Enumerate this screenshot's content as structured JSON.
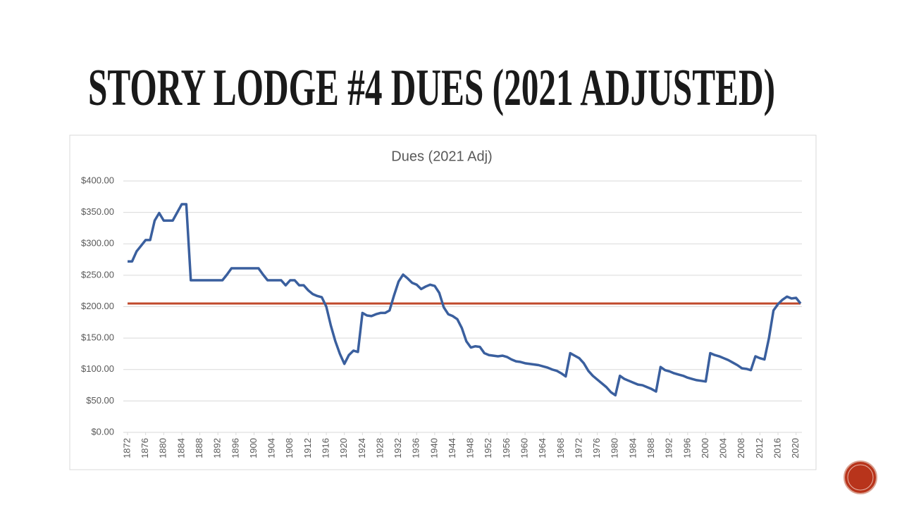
{
  "slide_title": "STORY LODGE #4 DUES (2021 ADJUSTED)",
  "chart_data": {
    "type": "line",
    "title": "Dues (2021 Adj)",
    "x": [
      1872,
      1873,
      1874,
      1875,
      1876,
      1877,
      1878,
      1879,
      1880,
      1881,
      1882,
      1883,
      1884,
      1885,
      1886,
      1887,
      1888,
      1889,
      1890,
      1891,
      1892,
      1893,
      1894,
      1895,
      1896,
      1897,
      1898,
      1899,
      1900,
      1901,
      1902,
      1903,
      1904,
      1905,
      1906,
      1907,
      1908,
      1909,
      1910,
      1911,
      1912,
      1913,
      1914,
      1915,
      1916,
      1917,
      1918,
      1919,
      1920,
      1921,
      1922,
      1923,
      1924,
      1925,
      1926,
      1927,
      1928,
      1929,
      1930,
      1931,
      1932,
      1933,
      1934,
      1935,
      1936,
      1937,
      1938,
      1939,
      1940,
      1941,
      1942,
      1943,
      1944,
      1945,
      1946,
      1947,
      1948,
      1949,
      1950,
      1951,
      1952,
      1953,
      1954,
      1955,
      1956,
      1957,
      1958,
      1959,
      1960,
      1961,
      1962,
      1963,
      1964,
      1965,
      1966,
      1967,
      1968,
      1969,
      1970,
      1971,
      1972,
      1973,
      1974,
      1975,
      1976,
      1977,
      1978,
      1979,
      1980,
      1981,
      1982,
      1983,
      1984,
      1985,
      1986,
      1987,
      1988,
      1989,
      1990,
      1991,
      1992,
      1993,
      1994,
      1995,
      1996,
      1997,
      1998,
      1999,
      2000,
      2001,
      2002,
      2003,
      2004,
      2005,
      2006,
      2007,
      2008,
      2009,
      2010,
      2011,
      2012,
      2013,
      2014,
      2015,
      2016,
      2017,
      2018,
      2019,
      2020,
      2021
    ],
    "series": [
      {
        "color": "#3a5f9e",
        "values": [
          272,
          272,
          288,
          297,
          306,
          306,
          337,
          349,
          337,
          337,
          337,
          350,
          363,
          363,
          242,
          242,
          242,
          242,
          242,
          242,
          242,
          242,
          251,
          261,
          261,
          261,
          261,
          261,
          261,
          261,
          251,
          242,
          242,
          242,
          242,
          234,
          242,
          242,
          234,
          234,
          226,
          220,
          217,
          215,
          200,
          170,
          145,
          125,
          109,
          123,
          130,
          128,
          190,
          186,
          185,
          188,
          190,
          190,
          194,
          218,
          240,
          251,
          245,
          238,
          235,
          228,
          232,
          235,
          233,
          222,
          199,
          188,
          185,
          180,
          166,
          145,
          135,
          137,
          136,
          126,
          123,
          122,
          121,
          122,
          120,
          116,
          113,
          112,
          110,
          109,
          108,
          107,
          105,
          103,
          100,
          98,
          94,
          89,
          126,
          122,
          118,
          110,
          98,
          90,
          84,
          78,
          72,
          64,
          59,
          90,
          85,
          82,
          79,
          76,
          75,
          72,
          69,
          65,
          104,
          99,
          97,
          94,
          92,
          90,
          87,
          85,
          83,
          82,
          81,
          126,
          123,
          121,
          118,
          115,
          111,
          107,
          102,
          101,
          99,
          121,
          118,
          116,
          150,
          194,
          204,
          211,
          216,
          213,
          214,
          205
        ]
      }
    ],
    "reference_lines": [
      {
        "value": 205,
        "color": "#c0492b"
      }
    ],
    "xlim": [
      1871.06,
      2021.3
    ],
    "xticks": [
      1872,
      1876,
      1880,
      1884,
      1888,
      1892,
      1896,
      1900,
      1904,
      1908,
      1912,
      1916,
      1920,
      1924,
      1928,
      1932,
      1936,
      1940,
      1944,
      1948,
      1952,
      1956,
      1960,
      1964,
      1968,
      1972,
      1976,
      1980,
      1984,
      1988,
      1992,
      1996,
      2000,
      2004,
      2008,
      2012,
      2016,
      2020
    ],
    "ylim": [
      0,
      400
    ],
    "yticks": [
      {
        "value": 0,
        "label": "$0.00"
      },
      {
        "value": 50,
        "label": "$50.00"
      },
      {
        "value": 100,
        "label": "$100.00"
      },
      {
        "value": 150,
        "label": "$150.00"
      },
      {
        "value": 200,
        "label": "$200.00"
      },
      {
        "value": 250,
        "label": "$250.00"
      },
      {
        "value": 300,
        "label": "$300.00"
      },
      {
        "value": 350,
        "label": "$350.00"
      },
      {
        "value": 400,
        "label": "$400.00"
      }
    ],
    "grid": true
  }
}
